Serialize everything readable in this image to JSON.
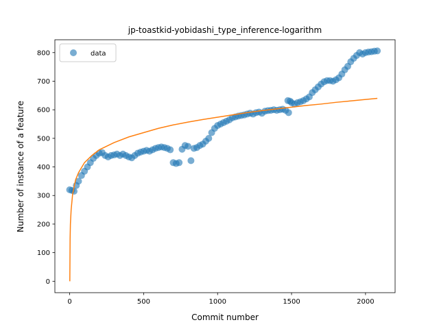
{
  "chart_data": {
    "type": "scatter",
    "title": "jp-toastkid-yobidashi_type_inference-logarithm",
    "xlabel": "Commit number",
    "ylabel": "Number of instance of a feature",
    "xlim": [
      -100,
      2200
    ],
    "ylim": [
      -40,
      845
    ],
    "xticks": [
      0,
      500,
      1000,
      1500,
      2000
    ],
    "yticks": [
      0,
      100,
      200,
      300,
      400,
      500,
      600,
      700,
      800
    ],
    "grid": false,
    "legend": "top-left",
    "series": [
      {
        "name": "data",
        "kind": "scatter",
        "color": "#1f77b4",
        "points": [
          [
            0,
            320
          ],
          [
            15,
            318
          ],
          [
            30,
            315
          ],
          [
            45,
            335
          ],
          [
            60,
            350
          ],
          [
            80,
            370
          ],
          [
            100,
            385
          ],
          [
            120,
            400
          ],
          [
            140,
            415
          ],
          [
            160,
            430
          ],
          [
            180,
            440
          ],
          [
            200,
            448
          ],
          [
            220,
            450
          ],
          [
            240,
            440
          ],
          [
            260,
            435
          ],
          [
            280,
            440
          ],
          [
            300,
            442
          ],
          [
            320,
            445
          ],
          [
            340,
            440
          ],
          [
            360,
            445
          ],
          [
            380,
            440
          ],
          [
            400,
            435
          ],
          [
            420,
            432
          ],
          [
            440,
            440
          ],
          [
            460,
            448
          ],
          [
            480,
            452
          ],
          [
            500,
            455
          ],
          [
            520,
            458
          ],
          [
            540,
            455
          ],
          [
            560,
            460
          ],
          [
            580,
            465
          ],
          [
            600,
            468
          ],
          [
            620,
            470
          ],
          [
            640,
            468
          ],
          [
            660,
            465
          ],
          [
            680,
            460
          ],
          [
            700,
            415
          ],
          [
            720,
            412
          ],
          [
            740,
            415
          ],
          [
            760,
            462
          ],
          [
            780,
            475
          ],
          [
            800,
            472
          ],
          [
            820,
            422
          ],
          [
            840,
            465
          ],
          [
            860,
            468
          ],
          [
            880,
            475
          ],
          [
            900,
            480
          ],
          [
            920,
            490
          ],
          [
            940,
            500
          ],
          [
            960,
            520
          ],
          [
            980,
            535
          ],
          [
            1000,
            545
          ],
          [
            1020,
            550
          ],
          [
            1040,
            555
          ],
          [
            1060,
            560
          ],
          [
            1080,
            565
          ],
          [
            1100,
            572
          ],
          [
            1120,
            575
          ],
          [
            1140,
            578
          ],
          [
            1160,
            580
          ],
          [
            1180,
            582
          ],
          [
            1200,
            585
          ],
          [
            1220,
            588
          ],
          [
            1240,
            585
          ],
          [
            1260,
            590
          ],
          [
            1280,
            592
          ],
          [
            1300,
            588
          ],
          [
            1320,
            595
          ],
          [
            1340,
            597
          ],
          [
            1360,
            598
          ],
          [
            1380,
            600
          ],
          [
            1400,
            598
          ],
          [
            1420,
            600
          ],
          [
            1440,
            602
          ],
          [
            1460,
            598
          ],
          [
            1475,
            632
          ],
          [
            1480,
            590
          ],
          [
            1490,
            630
          ],
          [
            1500,
            625
          ],
          [
            1520,
            620
          ],
          [
            1540,
            625
          ],
          [
            1560,
            628
          ],
          [
            1580,
            632
          ],
          [
            1600,
            638
          ],
          [
            1620,
            645
          ],
          [
            1640,
            660
          ],
          [
            1660,
            670
          ],
          [
            1680,
            680
          ],
          [
            1700,
            690
          ],
          [
            1720,
            698
          ],
          [
            1740,
            702
          ],
          [
            1760,
            702
          ],
          [
            1780,
            700
          ],
          [
            1800,
            705
          ],
          [
            1820,
            712
          ],
          [
            1840,
            725
          ],
          [
            1860,
            740
          ],
          [
            1880,
            752
          ],
          [
            1900,
            768
          ],
          [
            1920,
            780
          ],
          [
            1940,
            790
          ],
          [
            1960,
            800
          ],
          [
            1980,
            795
          ],
          [
            2000,
            800
          ],
          [
            2020,
            802
          ],
          [
            2040,
            803
          ],
          [
            2060,
            805
          ],
          [
            2080,
            806
          ]
        ]
      },
      {
        "name": "",
        "kind": "line",
        "color": "#ff7f0e",
        "points": [
          [
            1,
            0
          ],
          [
            3,
            150
          ],
          [
            5,
            200
          ],
          [
            10,
            250
          ],
          [
            20,
            305
          ],
          [
            40,
            355
          ],
          [
            60,
            380
          ],
          [
            100,
            415
          ],
          [
            150,
            440
          ],
          [
            200,
            460
          ],
          [
            300,
            485
          ],
          [
            400,
            505
          ],
          [
            500,
            520
          ],
          [
            600,
            535
          ],
          [
            700,
            547
          ],
          [
            800,
            557
          ],
          [
            900,
            566
          ],
          [
            1000,
            574
          ],
          [
            1100,
            582
          ],
          [
            1200,
            590
          ],
          [
            1300,
            597
          ],
          [
            1400,
            603
          ],
          [
            1500,
            609
          ],
          [
            1600,
            615
          ],
          [
            1700,
            620
          ],
          [
            1800,
            626
          ],
          [
            1900,
            631
          ],
          [
            2000,
            636
          ],
          [
            2080,
            640
          ]
        ]
      }
    ]
  }
}
